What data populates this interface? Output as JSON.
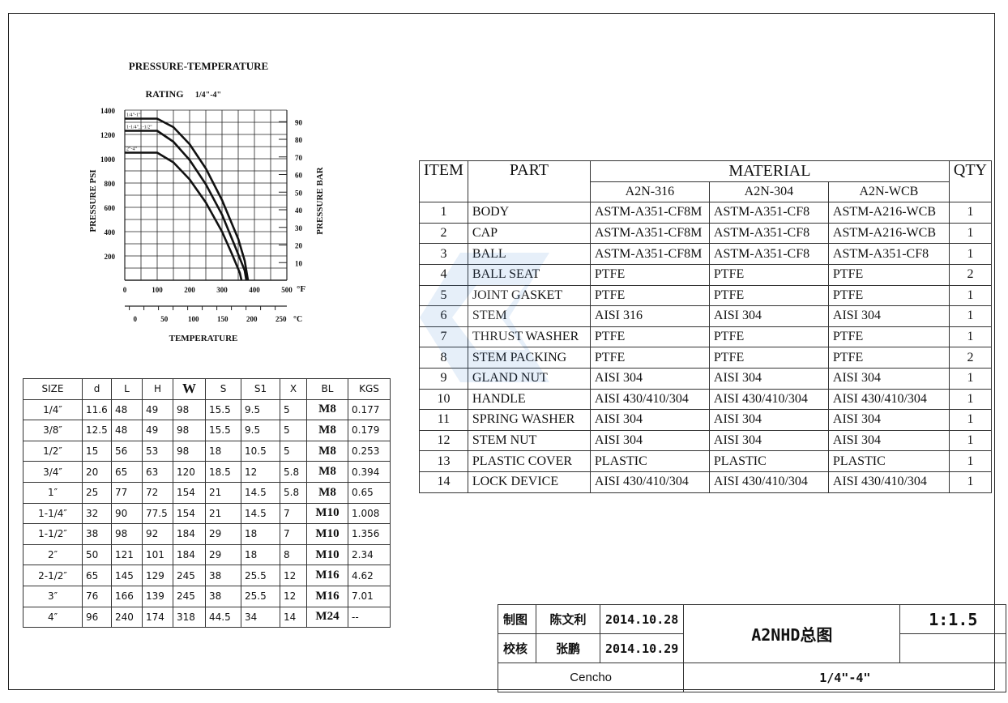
{
  "chart_data": {
    "type": "line",
    "title": "PRESSURE-TEMPERATURE",
    "subtitle_label": "RATING",
    "subtitle_range": "1/4\"-4\"",
    "xlabel": "TEMPERATURE",
    "ylabel_left": "PRESSURE PSI",
    "ylabel_right": "PRESSURE BAR",
    "x_unit_f": "°F",
    "x_unit_c": "°C",
    "x_ticks_f": [
      "0",
      "100",
      "200",
      "300",
      "400",
      "500"
    ],
    "x_ticks_c": [
      "0",
      "50",
      "100",
      "150",
      "200",
      "250"
    ],
    "y_ticks_psi": [
      "200",
      "400",
      "600",
      "800",
      "1000",
      "1200",
      "1400"
    ],
    "y_ticks_bar": [
      "10",
      "20",
      "30",
      "40",
      "50",
      "60",
      "70",
      "80",
      "90"
    ],
    "xlim_f": [
      0,
      500
    ],
    "ylim_psi": [
      0,
      1400
    ],
    "series": [
      {
        "name": "1/4\"-1\"",
        "points": [
          [
            0,
            1330
          ],
          [
            100,
            1330
          ],
          [
            150,
            1260
          ],
          [
            200,
            1120
          ],
          [
            250,
            920
          ],
          [
            300,
            660
          ],
          [
            350,
            340
          ],
          [
            370,
            160
          ],
          [
            380,
            0
          ]
        ]
      },
      {
        "name": "1-1/4\",1-1/2\"",
        "points": [
          [
            0,
            1230
          ],
          [
            100,
            1230
          ],
          [
            150,
            1140
          ],
          [
            200,
            990
          ],
          [
            250,
            790
          ],
          [
            300,
            540
          ],
          [
            340,
            280
          ],
          [
            370,
            80
          ],
          [
            375,
            0
          ]
        ]
      },
      {
        "name": "2\"-4\"",
        "points": [
          [
            0,
            1050
          ],
          [
            100,
            1050
          ],
          [
            150,
            970
          ],
          [
            200,
            830
          ],
          [
            250,
            640
          ],
          [
            300,
            400
          ],
          [
            330,
            220
          ],
          [
            355,
            60
          ],
          [
            360,
            0
          ]
        ]
      }
    ]
  },
  "size_table": {
    "headers": [
      "SIZE",
      "d",
      "L",
      "H",
      "W",
      "S",
      "S1",
      "X",
      "BL",
      "KGS"
    ],
    "rows": [
      [
        "1/4″",
        "11.6",
        "48",
        "49",
        "98",
        "15.5",
        "9.5",
        "5",
        "M8",
        "0.177"
      ],
      [
        "3/8″",
        "12.5",
        "48",
        "49",
        "98",
        "15.5",
        "9.5",
        "5",
        "M8",
        "0.179"
      ],
      [
        "1/2″",
        "15",
        "56",
        "53",
        "98",
        "18",
        "10.5",
        "5",
        "M8",
        "0.253"
      ],
      [
        "3/4″",
        "20",
        "65",
        "63",
        "120",
        "18.5",
        "12",
        "5.8",
        "M8",
        "0.394"
      ],
      [
        "1″",
        "25",
        "77",
        "72",
        "154",
        "21",
        "14.5",
        "5.8",
        "M8",
        "0.65"
      ],
      [
        "1-1/4″",
        "32",
        "90",
        "77.5",
        "154",
        "21",
        "14.5",
        "7",
        "M10",
        "1.008"
      ],
      [
        "1-1/2″",
        "38",
        "98",
        "92",
        "184",
        "29",
        "18",
        "7",
        "M10",
        "1.356"
      ],
      [
        "2″",
        "50",
        "121",
        "101",
        "184",
        "29",
        "18",
        "8",
        "M10",
        "2.34"
      ],
      [
        "2-1/2″",
        "65",
        "145",
        "129",
        "245",
        "38",
        "25.5",
        "12",
        "M16",
        "4.62"
      ],
      [
        "3″",
        "76",
        "166",
        "139",
        "245",
        "38",
        "25.5",
        "12",
        "M16",
        "7.01"
      ],
      [
        "4″",
        "96",
        "240",
        "174",
        "318",
        "44.5",
        "34",
        "14",
        "M24",
        "--"
      ]
    ]
  },
  "bom_table": {
    "headers": {
      "item": "ITEM",
      "part": "PART",
      "material": "MATERIAL",
      "qty": "QTY"
    },
    "material_columns": [
      "A2N-316",
      "A2N-304",
      "A2N-WCB"
    ],
    "rows": [
      {
        "item": "1",
        "part": "BODY",
        "m316": "ASTM-A351-CF8M",
        "m304": "ASTM-A351-CF8",
        "mwcb": "ASTM-A216-WCB",
        "qty": "1"
      },
      {
        "item": "2",
        "part": "CAP",
        "m316": "ASTM-A351-CF8M",
        "m304": "ASTM-A351-CF8",
        "mwcb": "ASTM-A216-WCB",
        "qty": "1"
      },
      {
        "item": "3",
        "part": "BALL",
        "m316": "ASTM-A351-CF8M",
        "m304": "ASTM-A351-CF8",
        "mwcb": "ASTM-A351-CF8",
        "qty": "1"
      },
      {
        "item": "4",
        "part": "BALL SEAT",
        "m316": "PTFE",
        "m304": "PTFE",
        "mwcb": "PTFE",
        "qty": "2"
      },
      {
        "item": "5",
        "part": "JOINT GASKET",
        "m316": "PTFE",
        "m304": "PTFE",
        "mwcb": "PTFE",
        "qty": "1"
      },
      {
        "item": "6",
        "part": "STEM",
        "m316": "AISI 316",
        "m304": "AISI 304",
        "mwcb": "AISI 304",
        "qty": "1"
      },
      {
        "item": "7",
        "part": "THRUST WASHER",
        "m316": "PTFE",
        "m304": "PTFE",
        "mwcb": "PTFE",
        "qty": "1"
      },
      {
        "item": "8",
        "part": "STEM PACKING",
        "m316": "PTFE",
        "m304": "PTFE",
        "mwcb": "PTFE",
        "qty": "2"
      },
      {
        "item": "9",
        "part": "GLAND NUT",
        "m316": "AISI 304",
        "m304": "AISI 304",
        "mwcb": "AISI 304",
        "qty": "1"
      },
      {
        "item": "10",
        "part": "HANDLE",
        "m316": "AISI 430/410/304",
        "m304": "AISI 430/410/304",
        "mwcb": "AISI 430/410/304",
        "qty": "1"
      },
      {
        "item": "11",
        "part": "SPRING WASHER",
        "m316": "AISI 304",
        "m304": "AISI 304",
        "mwcb": "AISI 304",
        "qty": "1"
      },
      {
        "item": "12",
        "part": "STEM NUT",
        "m316": "AISI 304",
        "m304": "AISI 304",
        "mwcb": "AISI 304",
        "qty": "1"
      },
      {
        "item": "13",
        "part": "PLASTIC COVER",
        "m316": "PLASTIC",
        "m304": "PLASTIC",
        "mwcb": "PLASTIC",
        "qty": "1"
      },
      {
        "item": "14",
        "part": "LOCK DEVICE",
        "m316": "AISI 430/410/304",
        "m304": "AISI 430/410/304",
        "mwcb": "AISI 430/410/304",
        "qty": "1"
      }
    ]
  },
  "title_block": {
    "drawn_label": "制图",
    "drawn_by": "陈文利",
    "drawn_date": "2014.10.28",
    "checked_label": "校核",
    "checked_by": "张鹏",
    "checked_date": "2014.10.29",
    "drawing_title": "A2NHD总图",
    "scale": "1:1.5",
    "company": "Cencho",
    "size_range": "1/4\"-4\""
  },
  "colors": {
    "line": "#111111",
    "watermark": "#3a7fd0"
  }
}
